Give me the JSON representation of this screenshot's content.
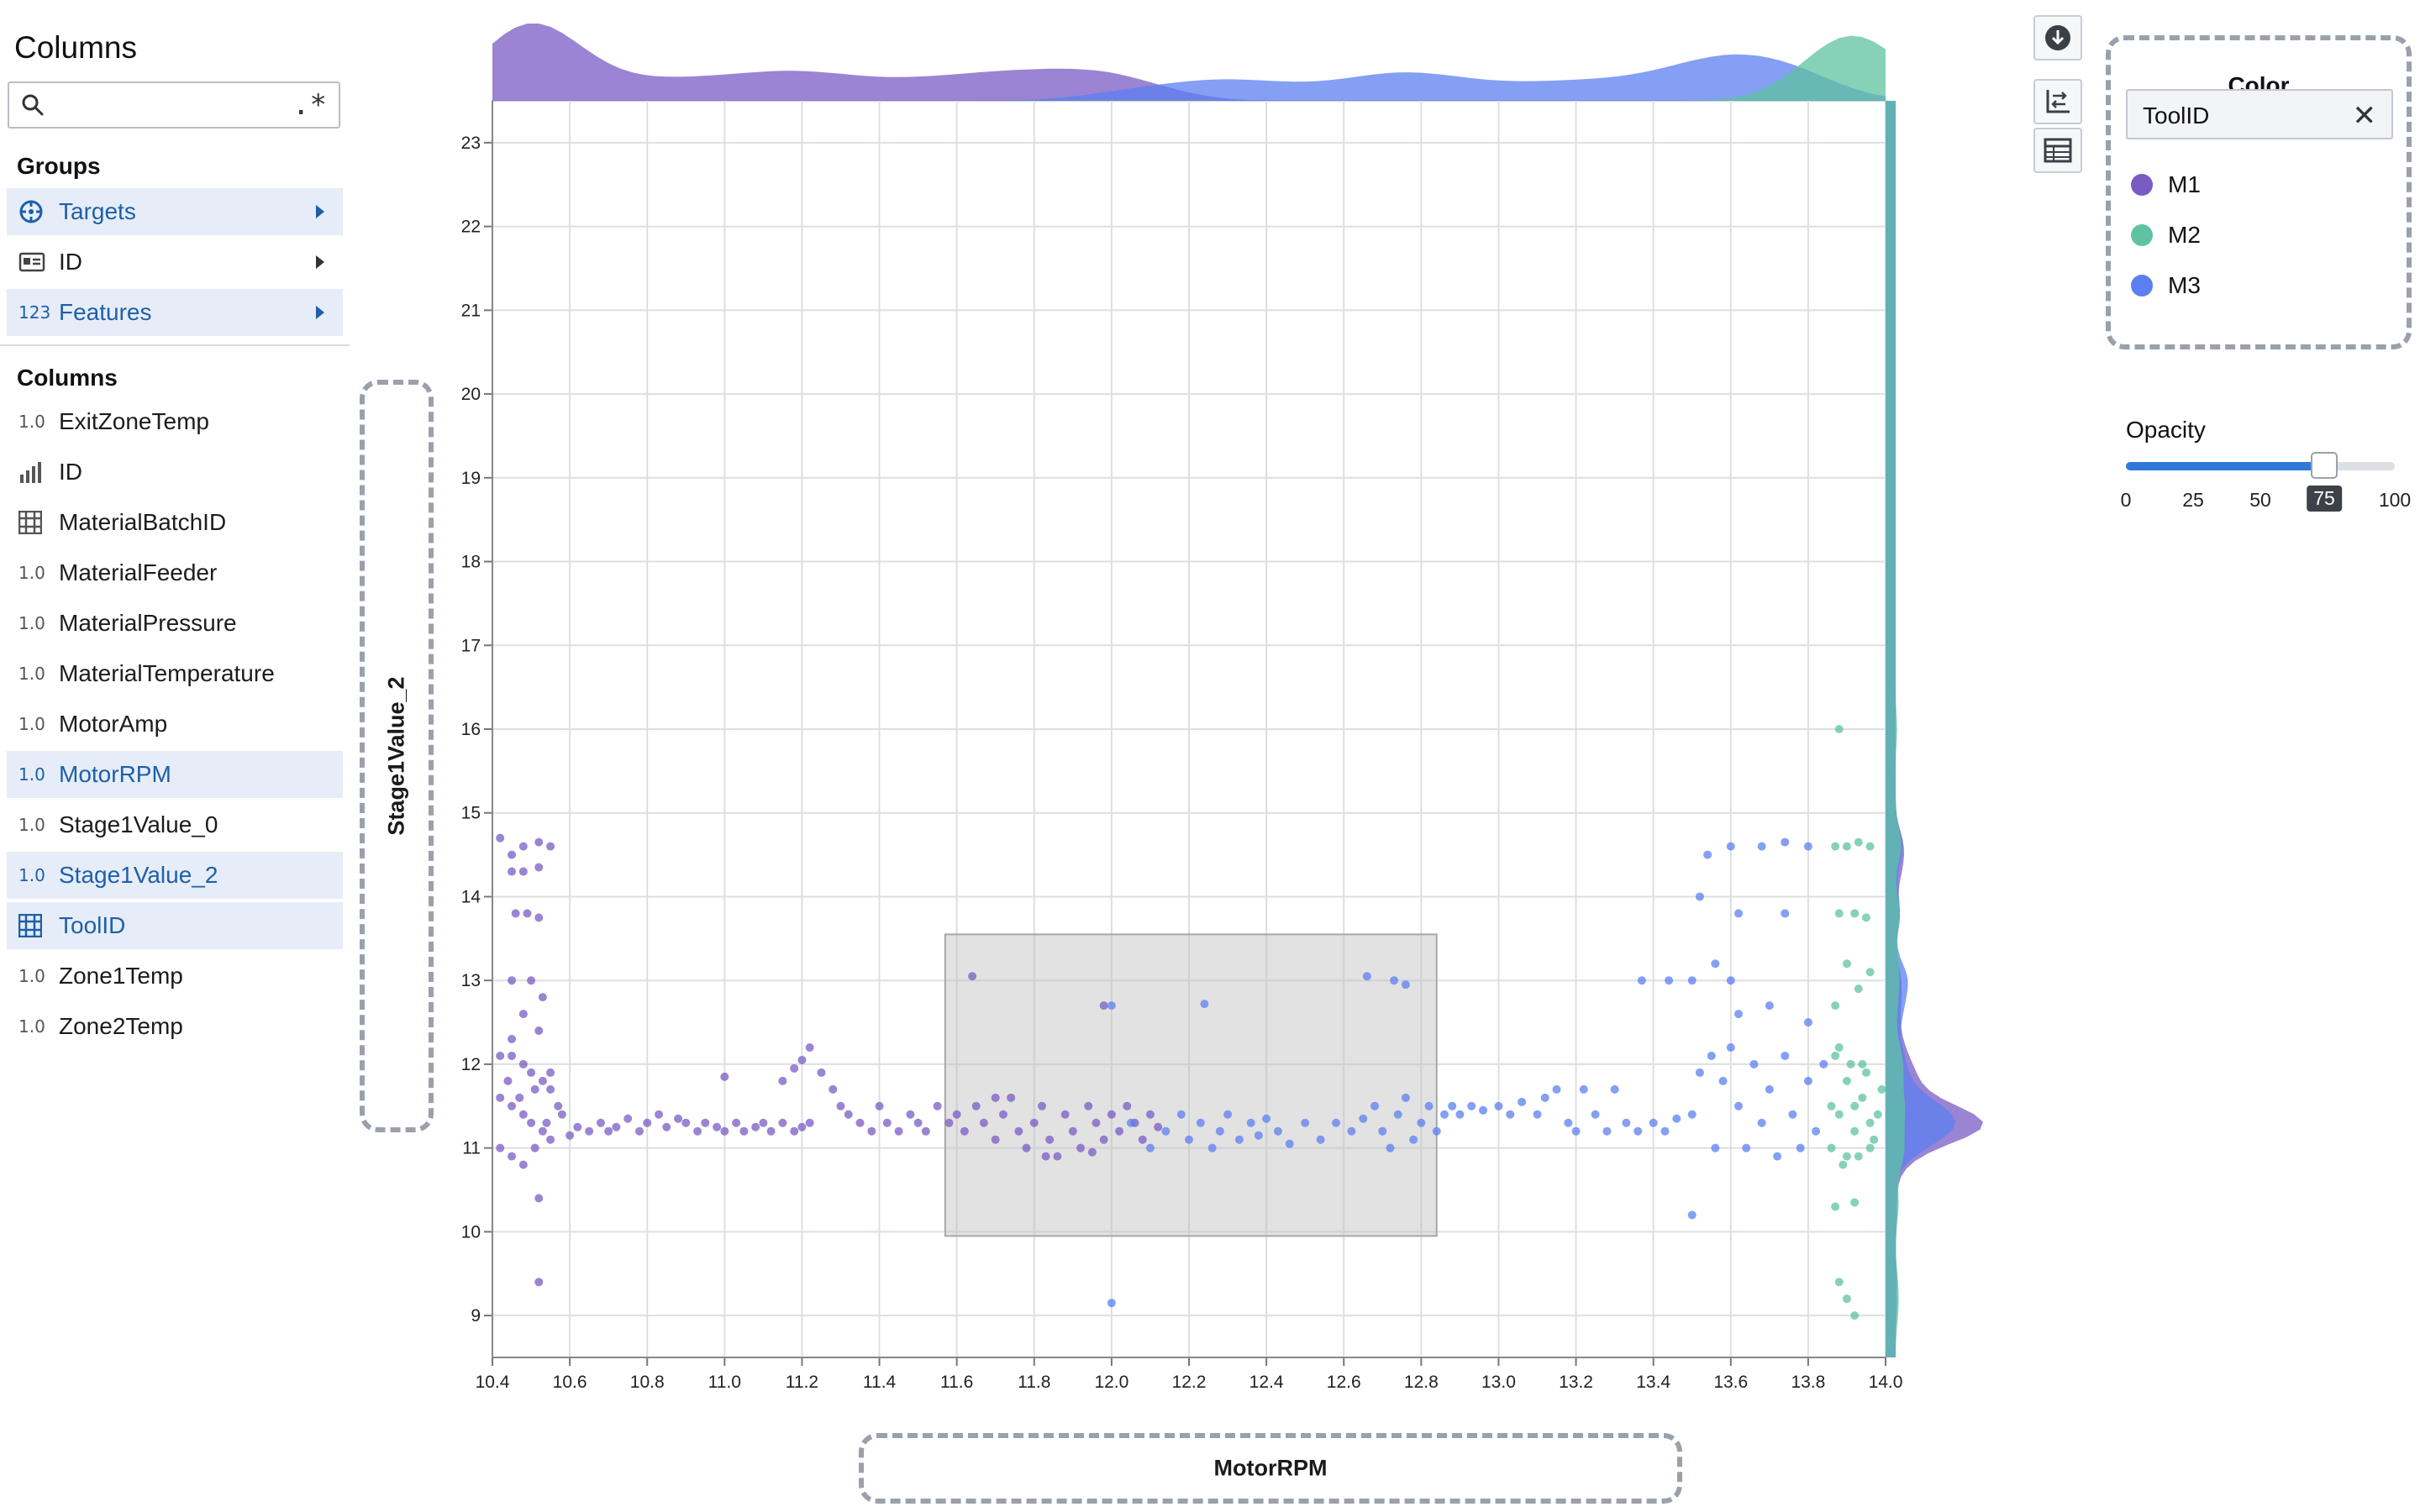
{
  "left_panel": {
    "title": "Columns",
    "search": {
      "value": "",
      "placeholder": "",
      "regex_toggle": ".*"
    },
    "groups_label": "Groups",
    "groups": [
      {
        "label": "Targets",
        "icon": "target-icon",
        "selected": true
      },
      {
        "label": "ID",
        "icon": "id-card-icon",
        "selected": false
      },
      {
        "label": "Features",
        "type": "123",
        "icon": "numeric-icon",
        "selected": true
      }
    ],
    "columns_label": "Columns",
    "columns": [
      {
        "label": "ExitZoneTemp",
        "type": "1.0",
        "selected": false
      },
      {
        "label": "ID",
        "type": "bars",
        "selected": false
      },
      {
        "label": "MaterialBatchID",
        "type": "grid",
        "selected": false
      },
      {
        "label": "MaterialFeeder",
        "type": "1.0",
        "selected": false
      },
      {
        "label": "MaterialPressure",
        "type": "1.0",
        "selected": false
      },
      {
        "label": "MaterialTemperature",
        "type": "1.0",
        "selected": false
      },
      {
        "label": "MotorAmp",
        "type": "1.0",
        "selected": false
      },
      {
        "label": "MotorRPM",
        "type": "1.0",
        "selected": true
      },
      {
        "label": "Stage1Value_0",
        "type": "1.0",
        "selected": false
      },
      {
        "label": "Stage1Value_2",
        "type": "1.0",
        "selected": true
      },
      {
        "label": "ToolID",
        "type": "grid",
        "selected": true
      },
      {
        "label": "Zone1Temp",
        "type": "1.0",
        "selected": false
      },
      {
        "label": "Zone2Temp",
        "type": "1.0",
        "selected": false
      }
    ]
  },
  "color_panel": {
    "title": "Color",
    "field": "ToolID",
    "clear_icon": "close-icon",
    "legend": [
      {
        "label": "M1",
        "color": "#7a5bc4"
      },
      {
        "label": "M2",
        "color": "#5fc2a2"
      },
      {
        "label": "M3",
        "color": "#5b7ff0"
      }
    ]
  },
  "opacity": {
    "title": "Opacity",
    "value": 75,
    "ticks": [
      "0",
      "25",
      "50",
      "100"
    ],
    "badge": "75",
    "accent": "#2f78d8"
  },
  "toolbar": {
    "buttons": [
      "download-icon",
      "swap-axes-icon",
      "table-icon"
    ]
  },
  "chart_data": {
    "type": "scatter",
    "xlabel": "MotorRPM",
    "ylabel": "Stage1Value_2",
    "xlim": [
      10.4,
      14.0
    ],
    "ylim": [
      8.5,
      23.5
    ],
    "x_ticks": [
      "10.4",
      "10.6",
      "10.8",
      "11.0",
      "11.2",
      "11.4",
      "11.6",
      "11.8",
      "12.0",
      "12.2",
      "12.4",
      "12.6",
      "12.8",
      "13.0",
      "13.2",
      "13.4",
      "13.6",
      "13.8",
      "14.0"
    ],
    "y_ticks": [
      "9",
      "10",
      "11",
      "12",
      "13",
      "14",
      "15",
      "16",
      "17",
      "18",
      "19",
      "20",
      "21",
      "22",
      "23"
    ],
    "grid": true,
    "marginal_density": true,
    "selection_rect": {
      "x": [
        11.57,
        12.84
      ],
      "y": [
        9.95,
        13.55
      ]
    },
    "series": [
      {
        "name": "M1",
        "color": "#7a5bc4",
        "points": [
          [
            10.42,
            14.7
          ],
          [
            10.45,
            14.5
          ],
          [
            10.48,
            14.6
          ],
          [
            10.52,
            14.65
          ],
          [
            10.55,
            14.6
          ],
          [
            10.45,
            14.3
          ],
          [
            10.48,
            14.3
          ],
          [
            10.52,
            14.35
          ],
          [
            10.46,
            13.8
          ],
          [
            10.49,
            13.8
          ],
          [
            10.52,
            13.75
          ],
          [
            10.45,
            13.0
          ],
          [
            10.5,
            13.0
          ],
          [
            10.53,
            12.8
          ],
          [
            10.48,
            12.6
          ],
          [
            10.52,
            12.4
          ],
          [
            10.45,
            12.3
          ],
          [
            10.42,
            12.1
          ],
          [
            10.45,
            12.1
          ],
          [
            10.48,
            12.0
          ],
          [
            10.5,
            11.9
          ],
          [
            10.53,
            11.8
          ],
          [
            10.55,
            11.7
          ],
          [
            10.42,
            11.6
          ],
          [
            10.45,
            11.5
          ],
          [
            10.48,
            11.4
          ],
          [
            10.5,
            11.3
          ],
          [
            10.53,
            11.2
          ],
          [
            10.55,
            11.1
          ],
          [
            10.42,
            11.0
          ],
          [
            10.45,
            10.9
          ],
          [
            10.48,
            10.8
          ],
          [
            10.51,
            11.0
          ],
          [
            10.54,
            11.3
          ],
          [
            10.57,
            11.5
          ],
          [
            10.44,
            11.8
          ],
          [
            10.47,
            11.6
          ],
          [
            10.51,
            11.7
          ],
          [
            10.55,
            11.9
          ],
          [
            10.52,
            10.4
          ],
          [
            10.52,
            9.4
          ],
          [
            10.58,
            11.4
          ],
          [
            10.6,
            11.15
          ],
          [
            10.62,
            11.25
          ],
          [
            10.65,
            11.2
          ],
          [
            10.68,
            11.3
          ],
          [
            10.7,
            11.2
          ],
          [
            10.72,
            11.25
          ],
          [
            10.75,
            11.35
          ],
          [
            10.78,
            11.2
          ],
          [
            10.8,
            11.3
          ],
          [
            10.83,
            11.4
          ],
          [
            10.85,
            11.25
          ],
          [
            10.88,
            11.35
          ],
          [
            10.9,
            11.3
          ],
          [
            10.93,
            11.2
          ],
          [
            10.95,
            11.3
          ],
          [
            10.98,
            11.25
          ],
          [
            11.0,
            11.2
          ],
          [
            11.03,
            11.3
          ],
          [
            11.05,
            11.2
          ],
          [
            11.08,
            11.25
          ],
          [
            11.1,
            11.3
          ],
          [
            11.12,
            11.2
          ],
          [
            11.15,
            11.3
          ],
          [
            11.18,
            11.2
          ],
          [
            11.2,
            11.25
          ],
          [
            11.22,
            11.3
          ],
          [
            11.0,
            11.85
          ],
          [
            11.15,
            11.8
          ],
          [
            11.18,
            11.95
          ],
          [
            11.2,
            12.05
          ],
          [
            11.22,
            12.2
          ],
          [
            11.25,
            11.9
          ],
          [
            11.28,
            11.7
          ],
          [
            11.3,
            11.5
          ],
          [
            11.32,
            11.4
          ],
          [
            11.35,
            11.3
          ],
          [
            11.38,
            11.2
          ],
          [
            11.4,
            11.5
          ],
          [
            11.42,
            11.3
          ],
          [
            11.45,
            11.2
          ],
          [
            11.48,
            11.4
          ],
          [
            11.5,
            11.3
          ],
          [
            11.52,
            11.2
          ],
          [
            11.55,
            11.5
          ],
          [
            11.58,
            11.3
          ],
          [
            11.6,
            11.4
          ],
          [
            11.62,
            11.2
          ],
          [
            11.65,
            11.5
          ],
          [
            11.67,
            11.3
          ],
          [
            11.7,
            11.1
          ],
          [
            11.72,
            11.4
          ],
          [
            11.74,
            11.6
          ],
          [
            11.76,
            11.2
          ],
          [
            11.78,
            11.0
          ],
          [
            11.8,
            11.3
          ],
          [
            11.82,
            11.5
          ],
          [
            11.84,
            11.1
          ],
          [
            11.86,
            10.9
          ],
          [
            11.88,
            11.4
          ],
          [
            11.9,
            11.2
          ],
          [
            11.92,
            11.0
          ],
          [
            11.94,
            11.5
          ],
          [
            11.96,
            11.3
          ],
          [
            11.98,
            11.1
          ],
          [
            12.0,
            11.4
          ],
          [
            12.02,
            11.2
          ],
          [
            12.04,
            11.5
          ],
          [
            12.06,
            11.3
          ],
          [
            12.08,
            11.1
          ],
          [
            12.1,
            11.4
          ],
          [
            12.12,
            11.25
          ],
          [
            11.64,
            13.05
          ],
          [
            11.98,
            12.7
          ],
          [
            11.7,
            11.6
          ],
          [
            11.83,
            10.9
          ],
          [
            11.95,
            10.95
          ]
        ]
      },
      {
        "name": "M3",
        "color": "#5b7ff0",
        "points": [
          [
            12.05,
            11.3
          ],
          [
            12.1,
            11.0
          ],
          [
            12.14,
            11.2
          ],
          [
            12.18,
            11.4
          ],
          [
            12.2,
            11.1
          ],
          [
            12.23,
            11.3
          ],
          [
            12.26,
            11.0
          ],
          [
            12.28,
            11.2
          ],
          [
            12.3,
            11.4
          ],
          [
            12.33,
            11.1
          ],
          [
            12.36,
            11.3
          ],
          [
            12.38,
            11.15
          ],
          [
            12.4,
            11.35
          ],
          [
            12.43,
            11.2
          ],
          [
            12.46,
            11.05
          ],
          [
            12.5,
            11.3
          ],
          [
            12.54,
            11.1
          ],
          [
            12.58,
            11.3
          ],
          [
            12.62,
            11.2
          ],
          [
            12.65,
            11.35
          ],
          [
            12.68,
            11.5
          ],
          [
            12.7,
            11.2
          ],
          [
            12.72,
            11.0
          ],
          [
            12.74,
            11.4
          ],
          [
            12.76,
            11.6
          ],
          [
            12.78,
            11.1
          ],
          [
            12.8,
            11.3
          ],
          [
            12.82,
            11.5
          ],
          [
            12.84,
            11.2
          ],
          [
            12.86,
            11.4
          ],
          [
            12.88,
            11.5
          ],
          [
            12.9,
            11.4
          ],
          [
            12.93,
            11.5
          ],
          [
            12.96,
            11.45
          ],
          [
            13.0,
            11.5
          ],
          [
            13.03,
            11.4
          ],
          [
            13.06,
            11.55
          ],
          [
            13.1,
            11.4
          ],
          [
            13.12,
            11.6
          ],
          [
            13.15,
            11.7
          ],
          [
            13.18,
            11.3
          ],
          [
            13.2,
            11.2
          ],
          [
            13.22,
            11.7
          ],
          [
            13.25,
            11.4
          ],
          [
            13.28,
            11.2
          ],
          [
            13.3,
            11.7
          ],
          [
            13.33,
            11.3
          ],
          [
            13.36,
            11.2
          ],
          [
            13.4,
            11.3
          ],
          [
            13.43,
            11.2
          ],
          [
            13.46,
            11.35
          ],
          [
            13.5,
            11.4
          ],
          [
            13.52,
            11.9
          ],
          [
            13.55,
            12.1
          ],
          [
            13.56,
            11.0
          ],
          [
            13.58,
            11.8
          ],
          [
            13.6,
            12.2
          ],
          [
            13.62,
            11.5
          ],
          [
            13.64,
            11.0
          ],
          [
            13.66,
            12.0
          ],
          [
            13.68,
            11.3
          ],
          [
            13.7,
            11.7
          ],
          [
            13.72,
            10.9
          ],
          [
            13.74,
            12.1
          ],
          [
            13.76,
            11.4
          ],
          [
            13.78,
            11.0
          ],
          [
            13.8,
            11.8
          ],
          [
            13.82,
            11.2
          ],
          [
            13.84,
            12.0
          ],
          [
            13.5,
            13.0
          ],
          [
            13.56,
            13.2
          ],
          [
            13.6,
            13.0
          ],
          [
            13.62,
            12.6
          ],
          [
            13.7,
            12.7
          ],
          [
            13.8,
            12.5
          ],
          [
            13.52,
            14.0
          ],
          [
            13.54,
            14.5
          ],
          [
            13.6,
            14.6
          ],
          [
            13.68,
            14.6
          ],
          [
            13.74,
            14.65
          ],
          [
            13.8,
            14.6
          ],
          [
            13.62,
            13.8
          ],
          [
            13.74,
            13.8
          ],
          [
            13.5,
            10.2
          ],
          [
            12.0,
            9.15
          ],
          [
            12.66,
            13.05
          ],
          [
            12.73,
            13.0
          ],
          [
            12.76,
            12.95
          ],
          [
            12.24,
            12.72
          ],
          [
            12.0,
            12.7
          ],
          [
            13.37,
            13.0
          ],
          [
            13.44,
            13.0
          ]
        ]
      },
      {
        "name": "M2",
        "color": "#5fc2a2",
        "points": [
          [
            13.86,
            11.0
          ],
          [
            13.88,
            11.4
          ],
          [
            13.9,
            11.8
          ],
          [
            13.92,
            11.2
          ],
          [
            13.94,
            11.6
          ],
          [
            13.96,
            11.0
          ],
          [
            13.98,
            11.4
          ],
          [
            13.87,
            12.1
          ],
          [
            13.89,
            10.8
          ],
          [
            13.91,
            12.0
          ],
          [
            13.93,
            10.9
          ],
          [
            13.95,
            11.9
          ],
          [
            13.97,
            11.1
          ],
          [
            13.99,
            11.7
          ],
          [
            13.86,
            11.5
          ],
          [
            13.88,
            12.2
          ],
          [
            13.9,
            10.9
          ],
          [
            13.92,
            11.5
          ],
          [
            13.94,
            12.0
          ],
          [
            13.96,
            11.3
          ],
          [
            13.87,
            12.7
          ],
          [
            13.9,
            13.2
          ],
          [
            13.93,
            12.9
          ],
          [
            13.96,
            13.1
          ],
          [
            13.88,
            13.8
          ],
          [
            13.92,
            13.8
          ],
          [
            13.95,
            13.75
          ],
          [
            13.87,
            14.6
          ],
          [
            13.9,
            14.6
          ],
          [
            13.93,
            14.65
          ],
          [
            13.96,
            14.6
          ],
          [
            13.88,
            16.0
          ],
          [
            13.87,
            10.3
          ],
          [
            13.92,
            10.35
          ],
          [
            13.88,
            9.4
          ],
          [
            13.9,
            9.2
          ],
          [
            13.92,
            9.0
          ]
        ]
      }
    ]
  }
}
